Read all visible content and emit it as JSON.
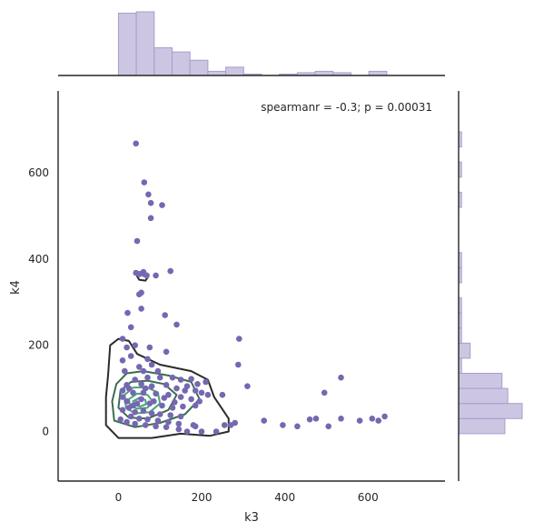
{
  "chart_data": {
    "type": "scatter",
    "kind": "jointplot with marginal histograms and kde contours",
    "xlabel": "k3",
    "ylabel": "k4",
    "xlim": [
      -145,
      785
    ],
    "ylim": [
      -115,
      790
    ],
    "x_ticks": [
      0,
      200,
      400,
      600
    ],
    "y_ticks": [
      0,
      200,
      400,
      600
    ],
    "annotation": "spearmanr = -0.3; p = 0.00031",
    "grid": false,
    "colors": {
      "points": "#7567b1",
      "hist_fill": "#cdc6e2",
      "hist_edge": "#a79dcc",
      "axis": "#262626",
      "contour_outer": "#2b2b2b",
      "contour_mid": "#3a6e50",
      "contour_inner": "#4aa379"
    },
    "points": [
      [
        42,
        668
      ],
      [
        62,
        578
      ],
      [
        72,
        550
      ],
      [
        78,
        530
      ],
      [
        105,
        525
      ],
      [
        78,
        495
      ],
      [
        45,
        442
      ],
      [
        60,
        370
      ],
      [
        62,
        365
      ],
      [
        42,
        368
      ],
      [
        50,
        365
      ],
      [
        68,
        362
      ],
      [
        90,
        362
      ],
      [
        125,
        372
      ],
      [
        55,
        322
      ],
      [
        50,
        318
      ],
      [
        22,
        275
      ],
      [
        55,
        285
      ],
      [
        112,
        270
      ],
      [
        30,
        242
      ],
      [
        140,
        248
      ],
      [
        75,
        195
      ],
      [
        10,
        215
      ],
      [
        40,
        200
      ],
      [
        20,
        195
      ],
      [
        115,
        185
      ],
      [
        290,
        215
      ],
      [
        288,
        155
      ],
      [
        10,
        165
      ],
      [
        30,
        175
      ],
      [
        70,
        168
      ],
      [
        50,
        150
      ],
      [
        80,
        155
      ],
      [
        15,
        140
      ],
      [
        60,
        140
      ],
      [
        95,
        140
      ],
      [
        40,
        120
      ],
      [
        70,
        125
      ],
      [
        100,
        125
      ],
      [
        130,
        125
      ],
      [
        150,
        120
      ],
      [
        175,
        122
      ],
      [
        190,
        110
      ],
      [
        20,
        108
      ],
      [
        55,
        110
      ],
      [
        80,
        105
      ],
      [
        115,
        108
      ],
      [
        140,
        100
      ],
      [
        165,
        105
      ],
      [
        210,
        115
      ],
      [
        160,
        95
      ],
      [
        185,
        95
      ],
      [
        200,
        90
      ],
      [
        215,
        85
      ],
      [
        250,
        85
      ],
      [
        310,
        105
      ],
      [
        535,
        125
      ],
      [
        495,
        90
      ],
      [
        10,
        95
      ],
      [
        35,
        90
      ],
      [
        60,
        90
      ],
      [
        90,
        88
      ],
      [
        120,
        85
      ],
      [
        150,
        80
      ],
      [
        175,
        75
      ],
      [
        195,
        70
      ],
      [
        20,
        70
      ],
      [
        45,
        65
      ],
      [
        75,
        65
      ],
      [
        105,
        60
      ],
      [
        130,
        55
      ],
      [
        155,
        58
      ],
      [
        185,
        60
      ],
      [
        10,
        50
      ],
      [
        25,
        55
      ],
      [
        40,
        45
      ],
      [
        60,
        48
      ],
      [
        80,
        42
      ],
      [
        100,
        40
      ],
      [
        125,
        38
      ],
      [
        150,
        35
      ],
      [
        30,
        35
      ],
      [
        50,
        30
      ],
      [
        70,
        28
      ],
      [
        95,
        25
      ],
      [
        120,
        22
      ],
      [
        145,
        18
      ],
      [
        180,
        15
      ],
      [
        185,
        12
      ],
      [
        5,
        28
      ],
      [
        20,
        22
      ],
      [
        40,
        18
      ],
      [
        65,
        15
      ],
      [
        90,
        12
      ],
      [
        115,
        10
      ],
      [
        145,
        5
      ],
      [
        165,
        0
      ],
      [
        200,
        0
      ],
      [
        235,
        0
      ],
      [
        255,
        15
      ],
      [
        270,
        15
      ],
      [
        280,
        20
      ],
      [
        350,
        25
      ],
      [
        395,
        15
      ],
      [
        430,
        12
      ],
      [
        460,
        28
      ],
      [
        475,
        30
      ],
      [
        505,
        12
      ],
      [
        535,
        30
      ],
      [
        580,
        25
      ],
      [
        610,
        30
      ],
      [
        625,
        25
      ],
      [
        640,
        35
      ],
      [
        35,
        60
      ],
      [
        55,
        75
      ],
      [
        85,
        70
      ],
      [
        110,
        78
      ],
      [
        135,
        68
      ],
      [
        10,
        80
      ],
      [
        25,
        100
      ],
      [
        65,
        100
      ]
    ],
    "contours": [
      {
        "level": "outer",
        "paths": [
          [
            [
              -25,
              130
            ],
            [
              -20,
              200
            ],
            [
              0,
              215
            ],
            [
              25,
              210
            ],
            [
              45,
              180
            ],
            [
              100,
              155
            ],
            [
              175,
              140
            ],
            [
              215,
              120
            ],
            [
              230,
              80
            ],
            [
              265,
              30
            ],
            [
              265,
              0
            ],
            [
              220,
              -10
            ],
            [
              150,
              -5
            ],
            [
              80,
              -15
            ],
            [
              0,
              -15
            ],
            [
              -30,
              15
            ],
            [
              -30,
              80
            ],
            [
              -25,
              130
            ]
          ],
          [
            [
              50,
              370
            ],
            [
              62,
              368
            ],
            [
              72,
              360
            ],
            [
              65,
              350
            ],
            [
              50,
              352
            ],
            [
              45,
              360
            ],
            [
              50,
              370
            ]
          ]
        ]
      },
      {
        "level": "mid",
        "paths": [
          [
            [
              -5,
              110
            ],
            [
              20,
              135
            ],
            [
              60,
              140
            ],
            [
              120,
              130
            ],
            [
              175,
              115
            ],
            [
              195,
              75
            ],
            [
              160,
              40
            ],
            [
              100,
              20
            ],
            [
              40,
              10
            ],
            [
              -10,
              25
            ],
            [
              -15,
              70
            ],
            [
              -5,
              110
            ]
          ]
        ]
      },
      {
        "level": "mid",
        "paths": [
          [
            [
              5,
              95
            ],
            [
              30,
              115
            ],
            [
              70,
              118
            ],
            [
              110,
              110
            ],
            [
              140,
              85
            ],
            [
              120,
              50
            ],
            [
              70,
              30
            ],
            [
              25,
              32
            ],
            [
              0,
              55
            ],
            [
              5,
              95
            ]
          ]
        ]
      },
      {
        "level": "inner",
        "paths": [
          [
            [
              15,
              85
            ],
            [
              35,
              102
            ],
            [
              70,
              102
            ],
            [
              95,
              90
            ],
            [
              100,
              65
            ],
            [
              75,
              45
            ],
            [
              40,
              42
            ],
            [
              18,
              55
            ],
            [
              15,
              85
            ]
          ]
        ]
      },
      {
        "level": "inner",
        "paths": [
          [
            [
              25,
              75
            ],
            [
              45,
              88
            ],
            [
              70,
              85
            ],
            [
              82,
              70
            ],
            [
              70,
              55
            ],
            [
              45,
              53
            ],
            [
              28,
              60
            ],
            [
              25,
              75
            ]
          ]
        ]
      },
      {
        "level": "inner",
        "paths": [
          [
            [
              35,
              70
            ],
            [
              50,
              78
            ],
            [
              65,
              73
            ],
            [
              66,
              63
            ],
            [
              52,
              58
            ],
            [
              38,
              62
            ],
            [
              35,
              70
            ]
          ]
        ]
      }
    ],
    "x_hist": {
      "bin_edges": [
        0,
        43,
        86,
        129,
        172,
        215,
        258,
        301,
        344,
        387,
        430,
        473,
        516,
        559,
        602,
        645
      ],
      "counts": [
        45,
        46,
        20,
        17,
        11,
        3,
        6,
        1,
        0,
        1,
        2,
        3,
        2,
        0,
        3
      ]
    },
    "y_hist": {
      "bin_edges": [
        -5,
        30,
        65,
        100,
        135,
        170,
        205,
        240,
        275,
        310,
        345,
        380,
        415,
        450,
        485,
        520,
        555,
        590,
        625,
        660,
        695
      ],
      "counts": [
        16,
        22,
        17,
        15,
        1,
        4,
        1,
        1,
        1,
        0,
        1,
        1,
        0,
        0,
        0,
        1,
        0,
        1,
        0,
        1
      ]
    }
  }
}
